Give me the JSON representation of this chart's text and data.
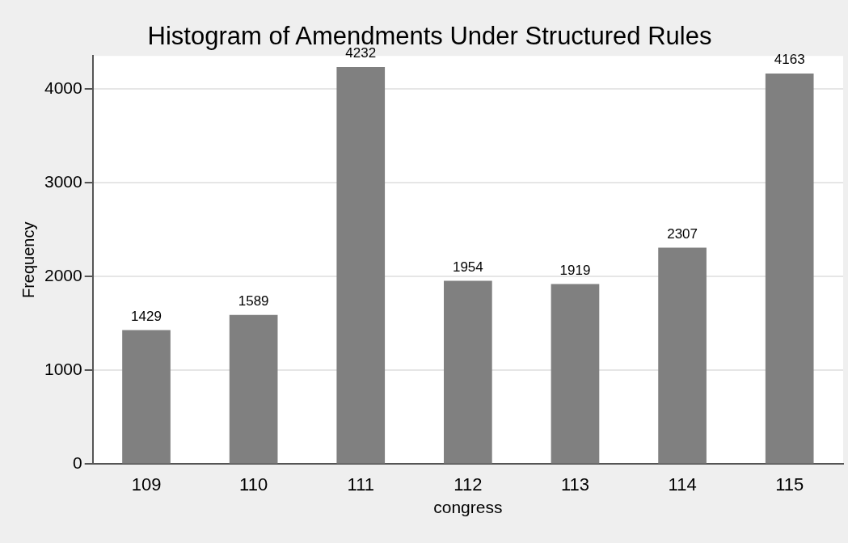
{
  "chart_data": {
    "type": "bar",
    "title": "Histogram of Amendments Under Structured Rules",
    "xlabel": "congress",
    "ylabel": "Frequency",
    "categories": [
      "109",
      "110",
      "111",
      "112",
      "113",
      "114",
      "115"
    ],
    "values": [
      1429,
      1589,
      4232,
      1954,
      1919,
      2307,
      4163
    ],
    "color": "#808080",
    "ylim": [
      0,
      4350
    ],
    "yticks": [
      0,
      1000,
      2000,
      3000,
      4000
    ],
    "grid": "y",
    "data_labels": true,
    "legend": false
  }
}
